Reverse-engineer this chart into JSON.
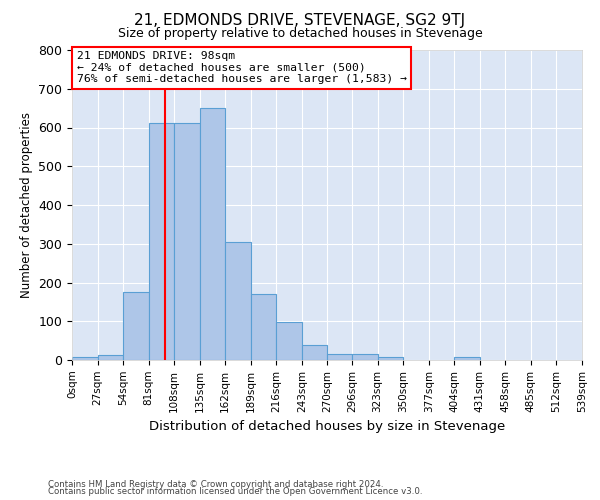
{
  "title": "21, EDMONDS DRIVE, STEVENAGE, SG2 9TJ",
  "subtitle": "Size of property relative to detached houses in Stevenage",
  "xlabel": "Distribution of detached houses by size in Stevenage",
  "ylabel": "Number of detached properties",
  "footnote1": "Contains HM Land Registry data © Crown copyright and database right 2024.",
  "footnote2": "Contains public sector information licensed under the Open Government Licence v3.0.",
  "bin_edges": [
    0,
    27,
    54,
    81,
    108,
    135,
    162,
    189,
    216,
    243,
    270,
    296,
    323,
    350,
    377,
    404,
    431,
    458,
    485,
    512,
    539
  ],
  "bar_heights": [
    8,
    13,
    175,
    612,
    612,
    650,
    305,
    170,
    97,
    40,
    15,
    15,
    8,
    0,
    0,
    8,
    0,
    0,
    0,
    0
  ],
  "bar_color": "#aec6e8",
  "bar_edge_color": "#5a9fd4",
  "red_line_x": 98,
  "annotation_line1": "21 EDMONDS DRIVE: 98sqm",
  "annotation_line2": "← 24% of detached houses are smaller (500)",
  "annotation_line3": "76% of semi-detached houses are larger (1,583) →",
  "annotation_box_color": "white",
  "annotation_box_edge_color": "red",
  "ylim": [
    0,
    800
  ],
  "yticks": [
    0,
    100,
    200,
    300,
    400,
    500,
    600,
    700,
    800
  ],
  "plot_bg_color": "#dce6f5",
  "grid_color": "white",
  "tick_label_fontsize": 7.5,
  "title_fontsize": 11,
  "subtitle_fontsize": 9,
  "ylabel_fontsize": 8.5,
  "xlabel_fontsize": 9.5
}
